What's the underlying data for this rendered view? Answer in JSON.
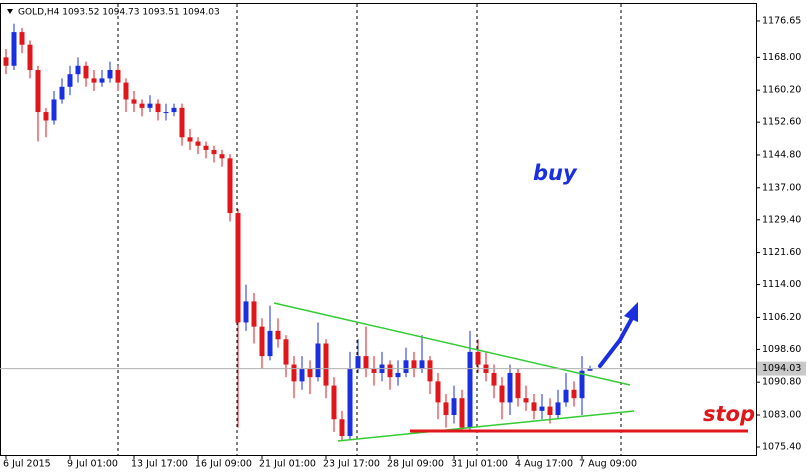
{
  "chart_data": {
    "type": "candlestick",
    "title": "GOLD,H4  1093.52 1094.73 1093.51 1094.03",
    "up_color": "#1a2fe0",
    "down_color": "#e0161b",
    "ylim": [
      1073.5,
      1180.68
    ],
    "yticks": [
      1176.65,
      {
        "value": 1168.0,
        "label": "1168.00"
      },
      {
        "value": 1160.2,
        "label": "1160.20"
      },
      {
        "value": 1152.6,
        "label": "1152.60"
      },
      {
        "value": 1144.8,
        "label": "1144.80"
      },
      {
        "value": 1137.0,
        "label": "1137.00"
      },
      {
        "value": 1129.4,
        "label": "1129.40"
      },
      {
        "value": 1121.6,
        "label": "1121.60"
      },
      {
        "value": 1114.0,
        "label": "1114.00"
      },
      {
        "value": 1106.2,
        "label": "1106.20"
      },
      {
        "value": 1098.6,
        "label": "1098.60"
      },
      {
        "value": 1090.8,
        "label": "1090.80"
      },
      {
        "value": 1083.0,
        "label": "1083.00"
      },
      {
        "value": 1075.4,
        "label": "1075.40"
      }
    ],
    "last_price": 1094.03,
    "annotations": [
      "buy",
      "stop"
    ],
    "categories": [
      "6 Jul 2015",
      null,
      null,
      null,
      null,
      null,
      null,
      null,
      "9 Jul 01:00",
      null,
      null,
      null,
      null,
      null,
      null,
      null,
      "13 Jul 17:00",
      null,
      null,
      null,
      null,
      null,
      null,
      null,
      "16 Jul 09:00",
      null,
      null,
      null,
      null,
      null,
      null,
      null,
      "21 Jul 01:00",
      null,
      null,
      null,
      null,
      null,
      null,
      null,
      "23 Jul 17:00",
      null,
      null,
      null,
      null,
      null,
      null,
      null,
      "28 Jul 09:00",
      null,
      null,
      null,
      null,
      null,
      null,
      null,
      "31 Jul 01:00",
      null,
      null,
      null,
      null,
      null,
      null,
      null,
      "4 Aug 17:00",
      null,
      null,
      null,
      null,
      null,
      null,
      null,
      "7 Aug 09:00",
      null
    ],
    "candles": [
      [
        1168,
        1170,
        1164,
        1166
      ],
      [
        1166,
        1176,
        1165,
        1174
      ],
      [
        1174,
        1175,
        1169,
        1171
      ],
      [
        1171,
        1172,
        1163,
        1165
      ],
      [
        1165,
        1166,
        1148,
        1155
      ],
      [
        1155,
        1156,
        1149,
        1153
      ],
      [
        1153,
        1160,
        1152,
        1158
      ],
      [
        1158,
        1163,
        1157,
        1161
      ],
      [
        1161,
        1166,
        1159,
        1164
      ],
      [
        1164,
        1168,
        1162,
        1166
      ],
      [
        1166,
        1167,
        1161,
        1163
      ],
      [
        1163,
        1165,
        1160,
        1162
      ],
      [
        1162,
        1165,
        1161,
        1163
      ],
      [
        1163,
        1167,
        1162,
        1165
      ],
      [
        1165,
        1166,
        1160,
        1162
      ],
      [
        1162,
        1163,
        1155,
        1158
      ],
      [
        1158,
        1160,
        1155,
        1157
      ],
      [
        1157,
        1158,
        1154,
        1156
      ],
      [
        1156,
        1159,
        1155,
        1157
      ],
      [
        1157,
        1158,
        1153,
        1155
      ],
      [
        1155,
        1157,
        1153,
        1155
      ],
      [
        1155,
        1157,
        1154,
        1156
      ],
      [
        1156,
        1157,
        1147,
        1149
      ],
      [
        1149,
        1151,
        1146,
        1148
      ],
      [
        1148,
        1149,
        1145,
        1147
      ],
      [
        1147,
        1148,
        1144,
        1146
      ],
      [
        1146,
        1147,
        1143,
        1145
      ],
      [
        1145,
        1146,
        1142,
        1144
      ],
      [
        1144,
        1145,
        1129,
        1131
      ],
      [
        1131,
        1132,
        1080,
        1105
      ],
      [
        1105,
        1114,
        1103,
        1110
      ],
      [
        1110,
        1112,
        1100,
        1104
      ],
      [
        1104,
        1106,
        1094,
        1097
      ],
      [
        1097,
        1109,
        1096,
        1103
      ],
      [
        1103,
        1106,
        1099,
        1101
      ],
      [
        1101,
        1102,
        1092,
        1095
      ],
      [
        1095,
        1097,
        1087,
        1091
      ],
      [
        1091,
        1097,
        1089,
        1094
      ],
      [
        1094,
        1096,
        1088,
        1092
      ],
      [
        1092,
        1105,
        1091,
        1100
      ],
      [
        1100,
        1101,
        1087,
        1090
      ],
      [
        1090,
        1092,
        1079,
        1082
      ],
      [
        1082,
        1084,
        1077,
        1078
      ],
      [
        1078,
        1098,
        1077,
        1094
      ],
      [
        1094,
        1101,
        1093,
        1097
      ],
      [
        1097,
        1104,
        1092,
        1094
      ],
      [
        1094,
        1097,
        1090,
        1093
      ],
      [
        1093,
        1098,
        1091,
        1095
      ],
      [
        1095,
        1096,
        1089,
        1092
      ],
      [
        1092,
        1096,
        1090,
        1093
      ],
      [
        1093,
        1099,
        1092,
        1096
      ],
      [
        1096,
        1098,
        1092,
        1094
      ],
      [
        1094,
        1102,
        1093,
        1096
      ],
      [
        1096,
        1097,
        1088,
        1091
      ],
      [
        1091,
        1093,
        1082,
        1086
      ],
      [
        1086,
        1088,
        1080,
        1083
      ],
      [
        1083,
        1090,
        1081,
        1087
      ],
      [
        1087,
        1089,
        1079,
        1080
      ],
      [
        1080,
        1103,
        1079,
        1098
      ],
      [
        1098,
        1101,
        1093,
        1095
      ],
      [
        1095,
        1098,
        1091,
        1093
      ],
      [
        1093,
        1095,
        1087,
        1090
      ],
      [
        1090,
        1092,
        1082,
        1086
      ],
      [
        1086,
        1095,
        1083,
        1093
      ],
      [
        1093,
        1094,
        1085,
        1087
      ],
      [
        1087,
        1090,
        1084,
        1086
      ],
      [
        1086,
        1088,
        1082,
        1084
      ],
      [
        1084,
        1088,
        1082,
        1085
      ],
      [
        1085,
        1087,
        1081,
        1083
      ],
      [
        1083,
        1089,
        1082,
        1086
      ],
      [
        1086,
        1093,
        1085,
        1089
      ],
      [
        1089,
        1091,
        1085,
        1087
      ],
      [
        1087,
        1097,
        1083,
        1093.52
      ],
      [
        1093.52,
        1094.73,
        1093.51,
        1094.03
      ]
    ]
  }
}
